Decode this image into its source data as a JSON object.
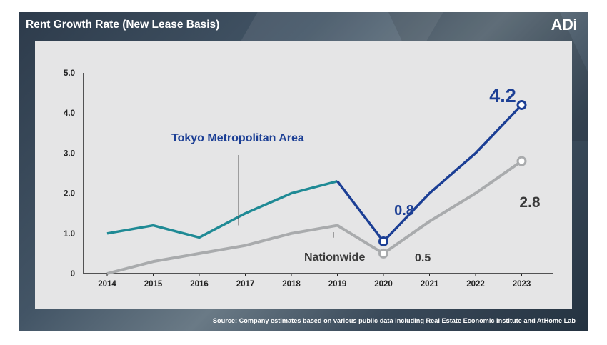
{
  "header": {
    "title": "Rent Growth Rate (New Lease Basis)",
    "logo_text": "ADi"
  },
  "footer": {
    "source": "Source: Company estimates based on various public data including Real Estate Economic Institute and AtHome Lab"
  },
  "chart_data": {
    "type": "line",
    "x": [
      "2014",
      "2015",
      "2016",
      "2017",
      "2018",
      "2019",
      "2020",
      "2021",
      "2022",
      "2023"
    ],
    "ylim": [
      0,
      5
    ],
    "yticks": [
      "0",
      "1.0",
      "2.0",
      "3.0",
      "4.0",
      "5.0"
    ],
    "grid": false,
    "series": [
      {
        "name": "Tokyo Metropolitan Area",
        "values": [
          1.0,
          1.2,
          0.9,
          1.5,
          2.0,
          2.3,
          0.8,
          2.0,
          3.0,
          4.2
        ],
        "color_before": "#1f8a95",
        "color_after": "#1c3f95"
      },
      {
        "name": "Nationwide",
        "values": [
          0.0,
          0.3,
          0.5,
          0.7,
          1.0,
          1.2,
          0.5,
          1.3,
          2.0,
          2.8
        ],
        "color": "#a9abad"
      }
    ],
    "annotations": [
      {
        "text": "0.8",
        "color": "#1c3f95"
      },
      {
        "text": "0.5",
        "color": "#3a3a3a"
      },
      {
        "text": "4.2",
        "color": "#1c3f95"
      },
      {
        "text": "2.8",
        "color": "#3a3a3a"
      }
    ]
  }
}
